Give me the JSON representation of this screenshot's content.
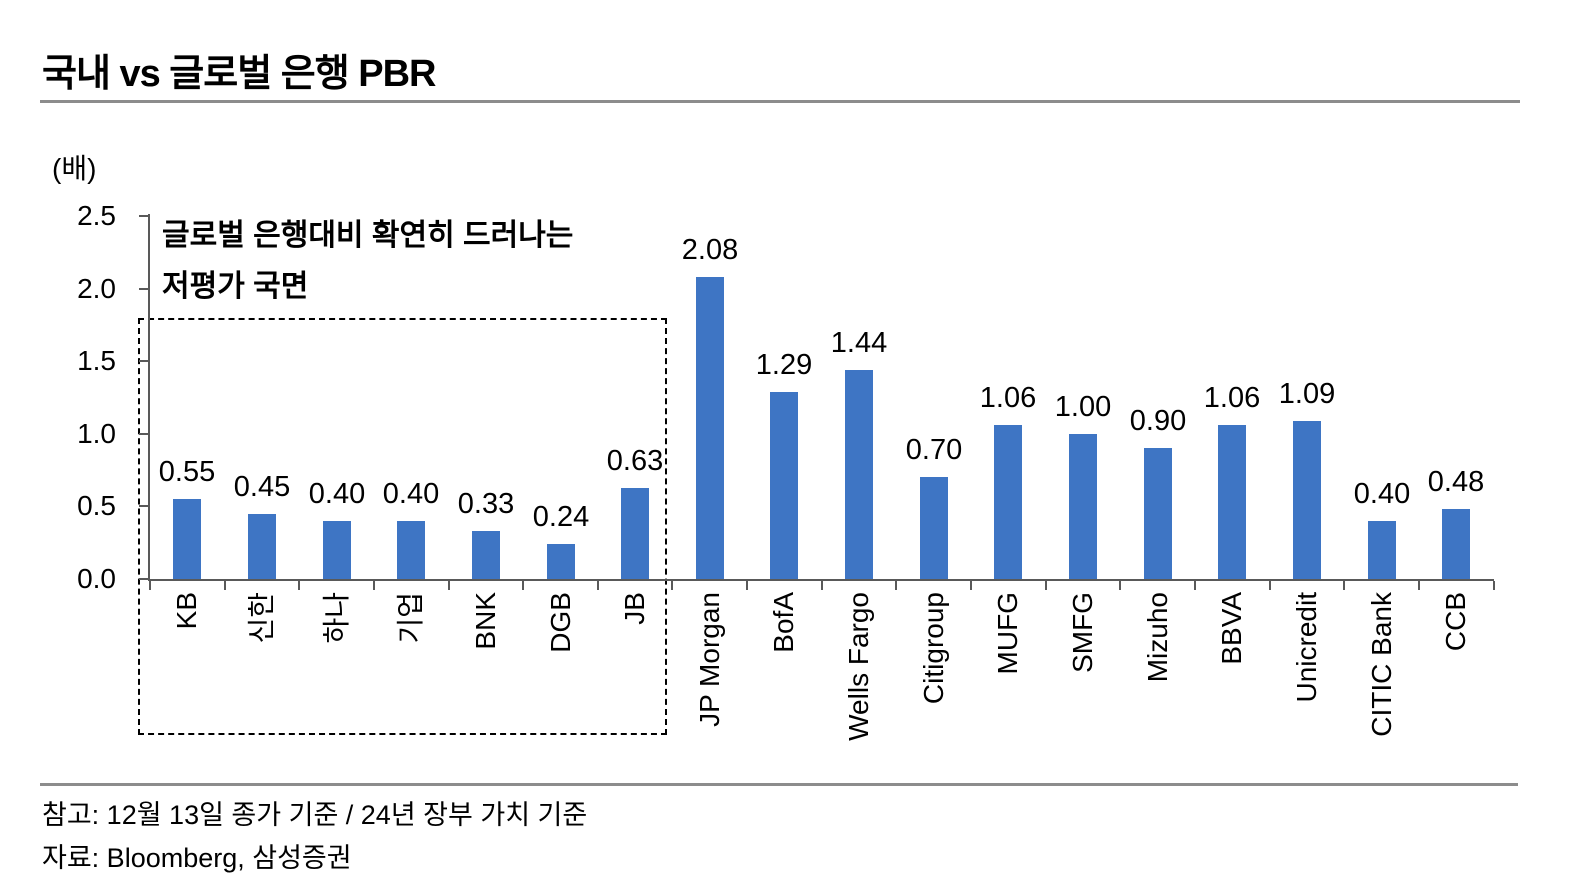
{
  "title": "국내 vs 글로벌 은행 PBR",
  "unit_label": "(배)",
  "annotation": {
    "line1": "글로벌 은행대비 확연히 드러나는",
    "line2": "저평가 국면"
  },
  "footer": {
    "note": "참고: 12월 13일 종가 기준 / 24년 장부 가치 기준",
    "source": "자료: Bloomberg, 삼성증권"
  },
  "colors": {
    "bar": "#3e75c4",
    "axis": "#595959",
    "rule": "#8c8c8c",
    "dashed_box": "#000000",
    "text": "#000000"
  },
  "chart_data": {
    "type": "bar",
    "title": "국내 vs 글로벌 은행 PBR",
    "xlabel": "",
    "ylabel": "(배)",
    "categories": [
      "KB",
      "신한",
      "하나",
      "기업",
      "BNK",
      "DGB",
      "JB",
      "JP Morgan",
      "BofA",
      "Wells Fargo",
      "Citigroup",
      "MUFG",
      "SMFG",
      "Mizuho",
      "BBVA",
      "Unicredit",
      "CITIC Bank",
      "CCB"
    ],
    "values": [
      0.55,
      0.45,
      0.4,
      0.4,
      0.33,
      0.24,
      0.63,
      2.08,
      1.29,
      1.44,
      0.7,
      1.06,
      1.0,
      0.9,
      1.06,
      1.09,
      0.4,
      0.48
    ],
    "data_labels": [
      "0.55",
      "0.45",
      "0.40",
      "0.40",
      "0.33",
      "0.24",
      "0.63",
      "2.08",
      "1.29",
      "1.44",
      "0.70",
      "1.06",
      "1.00",
      "0.90",
      "1.06",
      "1.09",
      "0.40",
      "0.48"
    ],
    "ylim": [
      0,
      2.5
    ],
    "ytick_labels": [
      "0.0",
      "0.5",
      "1.0",
      "1.5",
      "2.0",
      "2.5"
    ],
    "ytick_values": [
      0,
      0.5,
      1.0,
      1.5,
      2.0,
      2.5
    ],
    "grid": false,
    "legend": "none",
    "highlight_group": {
      "from_index": 0,
      "to_index": 6,
      "style": "dashed-box",
      "annotation_line1": "글로벌 은행대비 확연히 드러나는",
      "annotation_line2": "저평가 국면"
    }
  }
}
